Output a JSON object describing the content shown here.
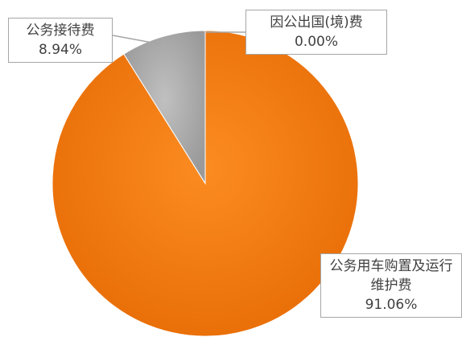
{
  "chart_data": {
    "type": "pie",
    "categories": [
      "因公出国(境)费",
      "公务用车购置及运行维护费",
      "公务接待费"
    ],
    "values": [
      0,
      91.06,
      8.94
    ],
    "value_labels": [
      "0.00%",
      "91.06%",
      "8.94%"
    ],
    "colors": [
      "#7f7f7f",
      "#f27b12",
      "#a6a6a6"
    ]
  }
}
